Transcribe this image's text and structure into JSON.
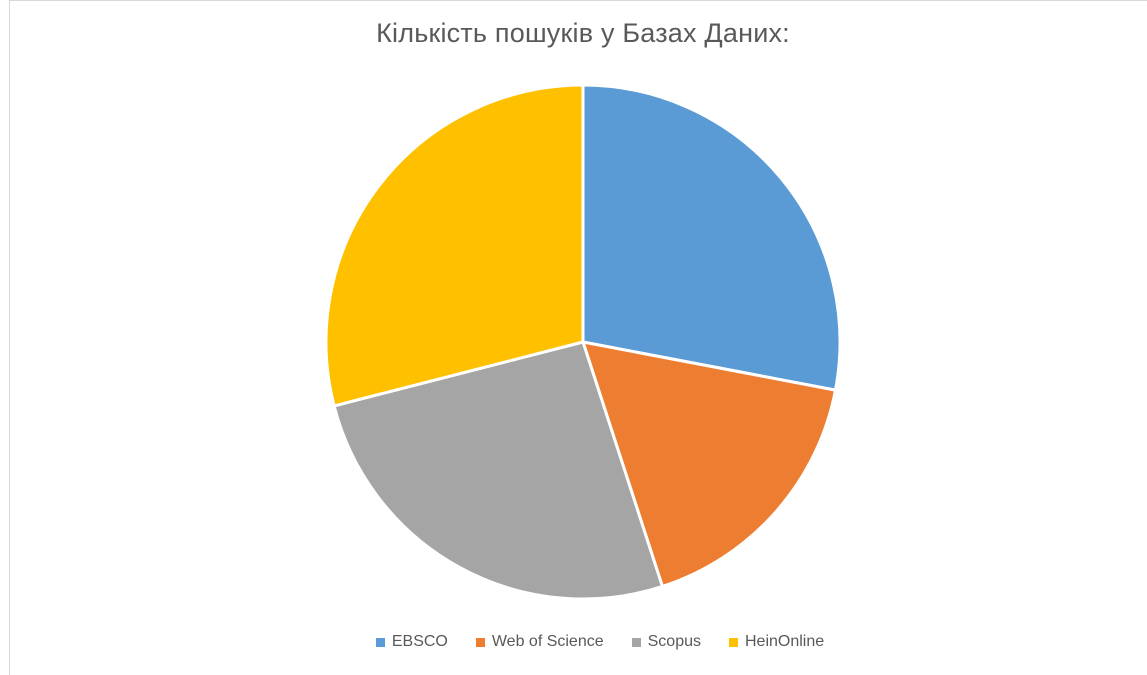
{
  "chart_data": {
    "type": "pie",
    "title": "Кількість пошуків у Базах Даних:",
    "categories": [
      "EBSCO",
      "Web of Science",
      "Scopus",
      "HeinOnline"
    ],
    "values": [
      28,
      17,
      26,
      29
    ],
    "colors": [
      "#5b9bd5",
      "#ed7d31",
      "#a5a5a5",
      "#ffc000"
    ],
    "legend": "bottom",
    "start_angle_deg": 0,
    "direction": "clockwise"
  }
}
